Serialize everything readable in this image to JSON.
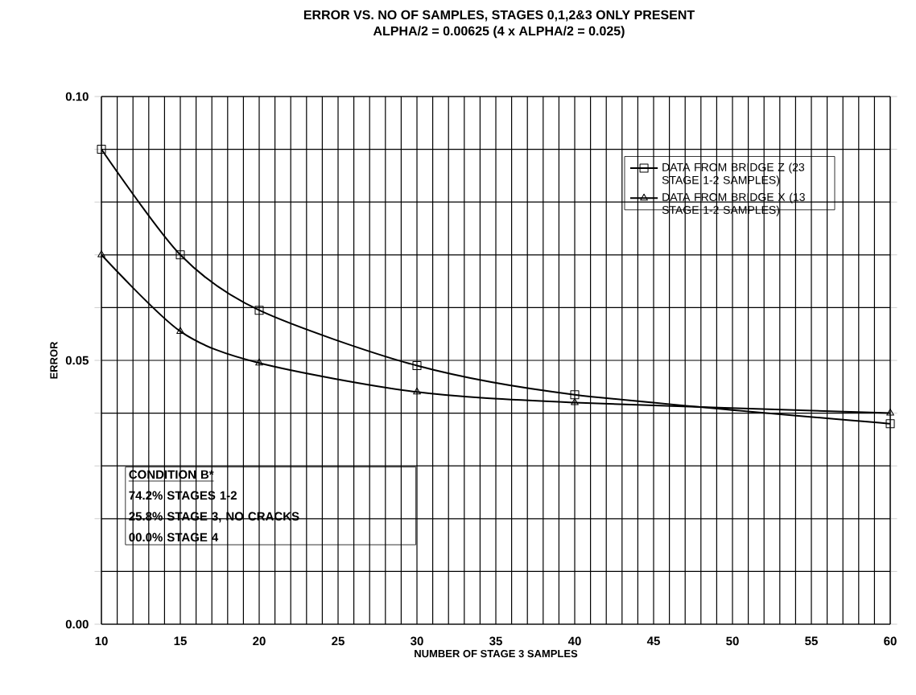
{
  "chart_data": {
    "type": "line",
    "title": "ERROR VS. NO OF SAMPLES, STAGES 0,1,2&3 ONLY PRESENT",
    "subtitle": "ALPHA/2 = 0.00625 (4 x ALPHA/2 = 0.025)",
    "xlabel": "NUMBER OF STAGE 3 SAMPLES",
    "ylabel": "ERROR",
    "x": [
      10,
      15,
      20,
      30,
      40,
      60
    ],
    "series": [
      {
        "name": "DATA FROM BRIDGE Z  (23 STAGE 1-2 SAMPLES)",
        "color": "#000000",
        "marker": "square",
        "values": [
          0.09,
          0.07,
          0.0595,
          0.049,
          0.0435,
          0.038
        ]
      },
      {
        "name": "DATA FROM BRIDGE X  (13 STAGE 1-2 SAMPLES)",
        "color": "#000000",
        "marker": "triangle",
        "values": [
          0.07,
          0.0555,
          0.0495,
          0.044,
          0.042,
          0.04
        ]
      }
    ],
    "xlim": [
      10,
      60
    ],
    "ylim": [
      0,
      0.1
    ],
    "xticks": [
      10,
      15,
      20,
      25,
      30,
      35,
      40,
      45,
      50,
      55,
      60
    ],
    "yticks": [
      {
        "value": 0.0,
        "label": "0.00"
      },
      {
        "value": 0.01,
        "label": null
      },
      {
        "value": 0.02,
        "label": null
      },
      {
        "value": 0.03,
        "label": null
      },
      {
        "value": 0.04,
        "label": null
      },
      {
        "value": 0.05,
        "label": "0.05"
      },
      {
        "value": 0.06,
        "label": null
      },
      {
        "value": 0.07,
        "label": null
      },
      {
        "value": 0.08,
        "label": null
      },
      {
        "value": 0.09,
        "label": null
      },
      {
        "value": 0.1,
        "label": "0.10"
      }
    ],
    "grid": true,
    "legend": "top right",
    "line_style": "solid",
    "annotations": [
      "CONDITION B*",
      "74.2% STAGES 1-2",
      "25.8% STAGE 3, NO CRACKS",
      "00.0% STAGE 4"
    ]
  }
}
